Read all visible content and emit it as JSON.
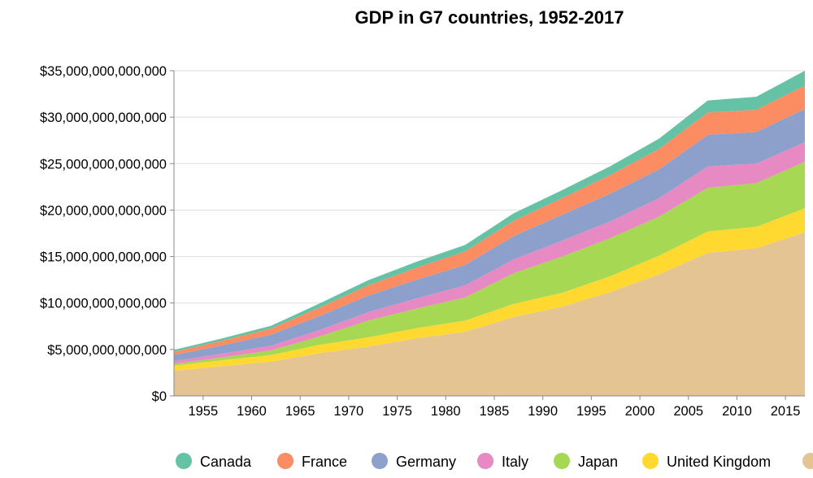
{
  "chart_data": {
    "type": "area",
    "stacked": true,
    "title": "GDP in G7 countries, 1952-2017",
    "xlabel": "",
    "ylabel": "",
    "xlim": [
      1952,
      2017
    ],
    "ylim": [
      0,
      35000000000000
    ],
    "x_ticks": [
      1955,
      1960,
      1965,
      1970,
      1975,
      1980,
      1985,
      1990,
      1995,
      2000,
      2005,
      2010,
      2015
    ],
    "y_ticks": [
      0,
      5000000000000,
      10000000000000,
      15000000000000,
      20000000000000,
      25000000000000,
      30000000000000,
      35000000000000
    ],
    "y_tick_labels": [
      "$0",
      "$5,000,000,000,000",
      "$10,000,000,000,000",
      "$15,000,000,000,000",
      "$20,000,000,000,000",
      "$25,000,000,000,000",
      "$30,000,000,000,000",
      "$35,000,000,000,000"
    ],
    "grid": "horizontal",
    "legend_position": "bottom",
    "x": [
      1952,
      1957,
      1962,
      1967,
      1972,
      1977,
      1982,
      1987,
      1992,
      1997,
      2002,
      2007,
      2012,
      2017
    ],
    "series": [
      {
        "name": "",
        "color": "#e5c494",
        "values": [
          2700000000000,
          3200000000000,
          3700000000000,
          4600000000000,
          5300000000000,
          6200000000000,
          6900000000000,
          8500000000000,
          9600000000000,
          11200000000000,
          13100000000000,
          15400000000000,
          15900000000000,
          17600000000000
        ]
      },
      {
        "name": "United Kingdom",
        "color": "#ffd92f",
        "values": [
          550000000000,
          650000000000,
          700000000000,
          900000000000,
          1000000000000,
          1100000000000,
          1200000000000,
          1400000000000,
          1500000000000,
          1700000000000,
          2000000000000,
          2300000000000,
          2300000000000,
          2600000000000
        ]
      },
      {
        "name": "Japan",
        "color": "#a6d854",
        "values": [
          200000000000,
          300000000000,
          500000000000,
          900000000000,
          1800000000000,
          2100000000000,
          2500000000000,
          3300000000000,
          3900000000000,
          4100000000000,
          4200000000000,
          4700000000000,
          4700000000000,
          5000000000000
        ]
      },
      {
        "name": "Italy",
        "color": "#e78ac3",
        "values": [
          300000000000,
          400000000000,
          500000000000,
          700000000000,
          900000000000,
          1100000000000,
          1300000000000,
          1500000000000,
          1700000000000,
          1800000000000,
          2000000000000,
          2300000000000,
          2100000000000,
          2100000000000
        ]
      },
      {
        "name": "Germany",
        "color": "#8da0cb",
        "values": [
          650000000000,
          900000000000,
          1200000000000,
          1500000000000,
          1800000000000,
          2000000000000,
          2200000000000,
          2500000000000,
          2800000000000,
          3000000000000,
          3100000000000,
          3400000000000,
          3400000000000,
          3600000000000
        ]
      },
      {
        "name": "France",
        "color": "#fc8d62",
        "values": [
          350000000000,
          500000000000,
          650000000000,
          900000000000,
          1100000000000,
          1300000000000,
          1450000000000,
          1650000000000,
          1800000000000,
          2000000000000,
          2200000000000,
          2400000000000,
          2400000000000,
          2500000000000
        ]
      },
      {
        "name": "Canada",
        "color": "#66c2a5",
        "values": [
          200000000000,
          250000000000,
          300000000000,
          450000000000,
          550000000000,
          650000000000,
          700000000000,
          800000000000,
          850000000000,
          950000000000,
          1100000000000,
          1300000000000,
          1400000000000,
          1600000000000
        ]
      }
    ],
    "legend": [
      {
        "name": "Canada",
        "color": "#66c2a5"
      },
      {
        "name": "France",
        "color": "#fc8d62"
      },
      {
        "name": "Germany",
        "color": "#8da0cb"
      },
      {
        "name": "Italy",
        "color": "#e78ac3"
      },
      {
        "name": "Japan",
        "color": "#a6d854"
      },
      {
        "name": "United Kingdom",
        "color": "#ffd92f"
      },
      {
        "name": "",
        "color": "#e5c494"
      }
    ]
  }
}
